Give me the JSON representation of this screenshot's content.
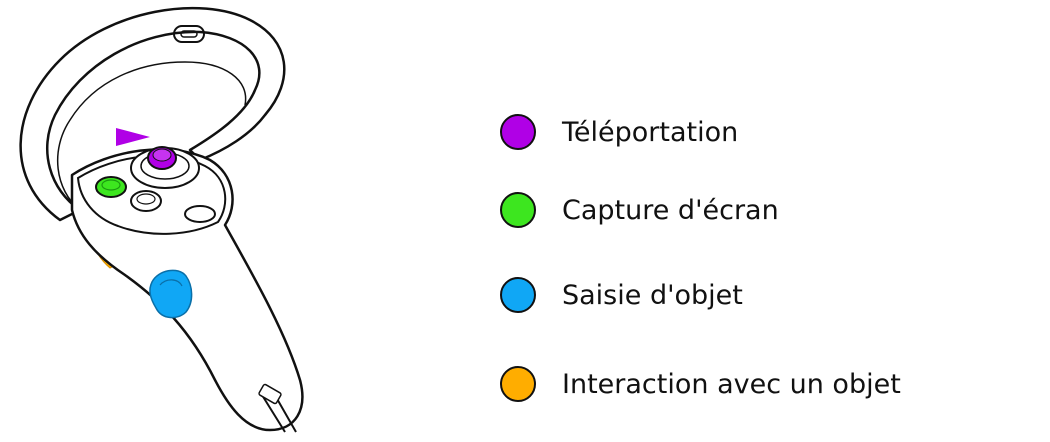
{
  "colors": {
    "teleport": "#b000e6",
    "screenshot": "#3de61f",
    "grab": "#10a7f5",
    "interact": "#ffad00"
  },
  "legend": {
    "items": [
      {
        "label": "Téléportation",
        "color": "#b000e6"
      },
      {
        "label": "Capture d'écran",
        "color": "#3de61f"
      },
      {
        "label": "Saisie d'objet",
        "color": "#10a7f5"
      },
      {
        "label": "Interaction avec un objet",
        "color": "#ffad00"
      }
    ]
  }
}
